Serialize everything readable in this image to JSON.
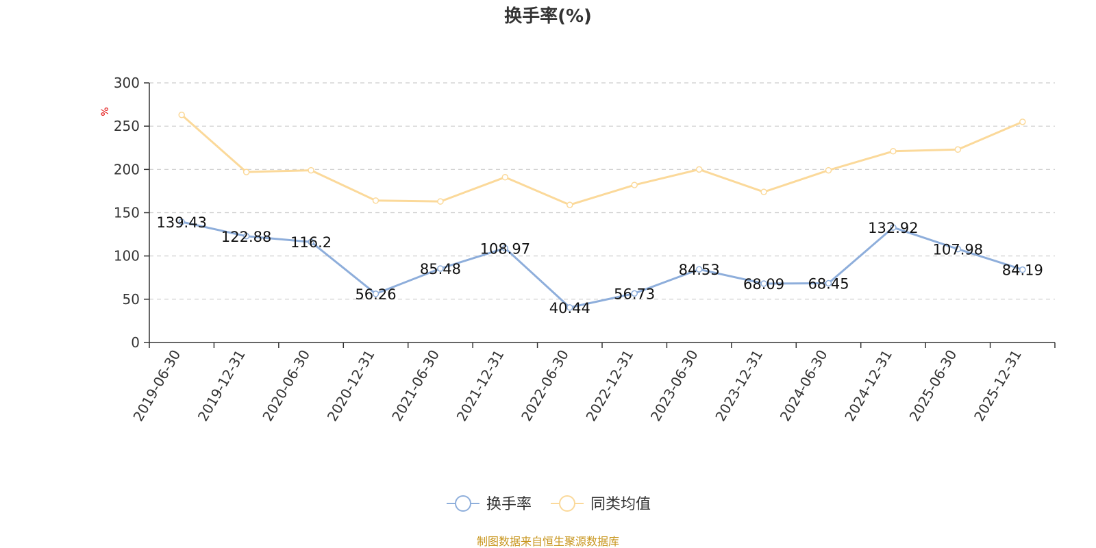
{
  "chart_data": {
    "type": "line",
    "title": "换手率(%)",
    "ylabel": "%",
    "xlabel": "",
    "ylim": [
      0,
      300
    ],
    "yticks": [
      0,
      50,
      100,
      150,
      200,
      250,
      300
    ],
    "grid": true,
    "legend_position": "bottom-center",
    "categories": [
      "2019-06-30",
      "2019-12-31",
      "2020-06-30",
      "2020-12-31",
      "2021-06-30",
      "2021-12-31",
      "2022-06-30",
      "2022-12-31",
      "2023-06-30",
      "2023-12-31",
      "2024-06-30",
      "2024-12-31",
      "2025-06-30",
      "2025-12-31"
    ],
    "series": [
      {
        "name": "换手率",
        "color": "#8eaedb",
        "values": [
          139.43,
          122.88,
          116.2,
          56.26,
          85.48,
          108.97,
          40.44,
          56.73,
          84.53,
          68.09,
          68.45,
          132.92,
          107.98,
          84.19
        ],
        "labels": [
          "139.43",
          "122.88",
          "116.2",
          "56.26",
          "85.48",
          "108.97",
          "40.44",
          "56.73",
          "84.53",
          "68.09",
          "68.45",
          "132.92",
          "107.98",
          "84.19"
        ]
      },
      {
        "name": "同类均值",
        "color": "#fbd99a",
        "values": [
          263,
          197,
          199,
          164,
          163,
          191,
          159,
          182,
          200,
          174,
          199,
          221,
          223,
          255
        ]
      }
    ],
    "source": "制图数据来自恒生聚源数据库"
  }
}
